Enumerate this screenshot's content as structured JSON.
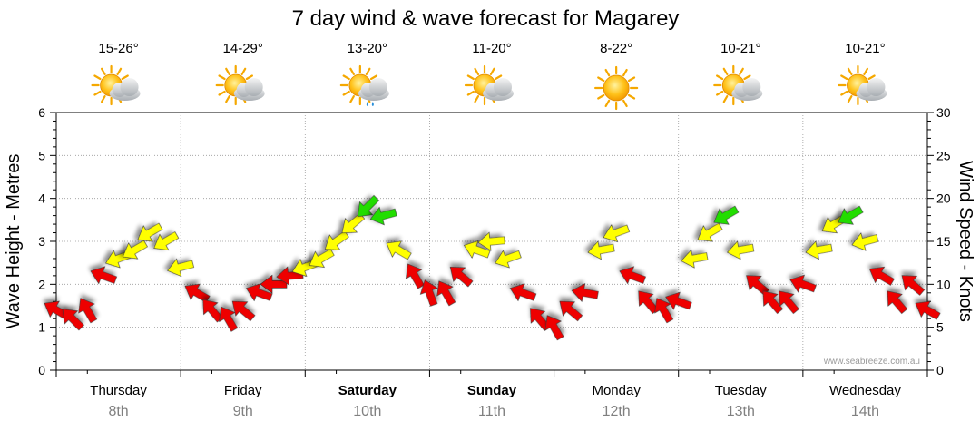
{
  "title": "7 day wind & wave forecast for Magarey",
  "watermark": "www.seabreeze.com.au",
  "days": [
    {
      "name": "Thursday",
      "date": "8th",
      "temp": "15-26°",
      "weather_icon": "sun-cloud-icon",
      "bold": false
    },
    {
      "name": "Friday",
      "date": "9th",
      "temp": "14-29°",
      "weather_icon": "sun-cloud-icon",
      "bold": false
    },
    {
      "name": "Saturday",
      "date": "10th",
      "temp": "13-20°",
      "weather_icon": "sun-cloud-rain-icon",
      "bold": true
    },
    {
      "name": "Sunday",
      "date": "11th",
      "temp": "11-20°",
      "weather_icon": "sun-cloud-icon",
      "bold": true
    },
    {
      "name": "Monday",
      "date": "12th",
      "temp": "8-22°",
      "weather_icon": "sun-icon",
      "bold": false
    },
    {
      "name": "Tuesday",
      "date": "13th",
      "temp": "10-21°",
      "weather_icon": "sun-cloud-icon",
      "bold": false
    },
    {
      "name": "Wednesday",
      "date": "14th",
      "temp": "10-21°",
      "weather_icon": "sun-cloud-icon",
      "bold": false
    }
  ],
  "chart_data": {
    "type": "line",
    "title": "7 day wind & wave forecast for Magarey",
    "ylabel_left": "Wave Height - Metres",
    "ylabel_right": "Wind Speed - Knots",
    "ylim_left": [
      0,
      6
    ],
    "ylim_right": [
      0,
      30
    ],
    "yticks_left": [
      "0",
      "1",
      "2",
      "3",
      "4",
      "5",
      "6"
    ],
    "yticks_right": [
      "0",
      "5",
      "10",
      "15",
      "20",
      "25",
      "30"
    ],
    "x_unit": "days",
    "xlim": [
      0,
      7
    ],
    "categories": [
      "Thursday 8th",
      "Friday 9th",
      "Saturday 10th",
      "Sunday 11th",
      "Monday 12th",
      "Tuesday 13th",
      "Wednesday 14th"
    ],
    "grid": true,
    "legend": "none",
    "color_scale": {
      "light": "#ee0000",
      "moderate": "#ffff00",
      "strong": "#22dd00"
    },
    "series": [
      {
        "name": "Wind Speed - Knots",
        "axis": "right",
        "x": [
          0.0,
          0.13,
          0.25,
          0.38,
          0.5,
          0.63,
          0.75,
          0.88,
          1.0,
          1.13,
          1.25,
          1.38,
          1.5,
          1.63,
          1.75,
          1.88,
          2.0,
          2.13,
          2.25,
          2.38,
          2.5,
          2.63,
          2.75,
          2.88,
          3.0,
          3.13,
          3.25,
          3.38,
          3.5,
          3.63,
          3.75,
          3.88,
          4.0,
          4.13,
          4.25,
          4.38,
          4.5,
          4.63,
          4.75,
          4.88,
          5.0,
          5.13,
          5.25,
          5.38,
          5.5,
          5.63,
          5.75,
          5.88,
          6.0,
          6.13,
          6.25,
          6.38,
          6.5,
          6.63,
          6.75,
          6.88,
          7.0
        ],
        "values": [
          7,
          6,
          7,
          11,
          13,
          14,
          16,
          15,
          12,
          9,
          7,
          6,
          7,
          9,
          10,
          11,
          12,
          13,
          15,
          17,
          19,
          18,
          14,
          11,
          9,
          9,
          11,
          14,
          15,
          13,
          9,
          6,
          5,
          7,
          9,
          14,
          16,
          11,
          8,
          7,
          8,
          13,
          16,
          18,
          14,
          10,
          8,
          8,
          10,
          14,
          17,
          18,
          15,
          11,
          8,
          10,
          7
        ],
        "directions_deg": [
          210,
          225,
          240,
          200,
          160,
          150,
          150,
          150,
          165,
          210,
          230,
          240,
          220,
          200,
          180,
          175,
          160,
          150,
          145,
          140,
          135,
          165,
          210,
          240,
          250,
          240,
          220,
          200,
          175,
          160,
          200,
          230,
          240,
          220,
          190,
          170,
          160,
          200,
          230,
          240,
          200,
          170,
          150,
          150,
          170,
          220,
          230,
          230,
          200,
          170,
          150,
          150,
          165,
          210,
          230,
          220,
          210
        ]
      }
    ]
  }
}
